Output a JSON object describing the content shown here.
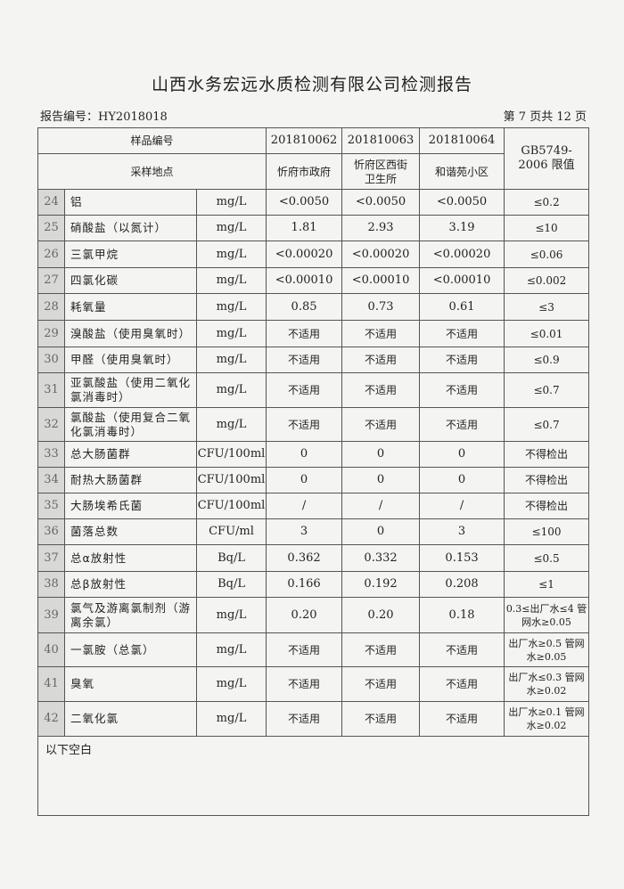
{
  "title": "山西水务宏远水质检测有限公司检测报告",
  "report_no": "报告编号：HY2018018",
  "page": "第 7 页共 12 页",
  "header": {
    "sample_no_label": "样品编号",
    "location_label": "采样地点",
    "samples": [
      "201810062",
      "201810063",
      "201810064"
    ],
    "locations": [
      "忻府市政府",
      "忻府区西街卫生所",
      "和谐苑小区"
    ],
    "limit_label": "GB5749-2006 限值"
  },
  "rows": [
    {
      "n": "24",
      "name": "铝",
      "unit": "mg/L",
      "v": [
        "<0.0050",
        "<0.0050",
        "<0.0050"
      ],
      "lim": "≤0.2"
    },
    {
      "n": "25",
      "name": "硝酸盐（以氮计）",
      "unit": "mg/L",
      "v": [
        "1.81",
        "2.93",
        "3.19"
      ],
      "lim": "≤10"
    },
    {
      "n": "26",
      "name": "三氯甲烷",
      "unit": "mg/L",
      "v": [
        "<0.00020",
        "<0.00020",
        "<0.00020"
      ],
      "lim": "≤0.06"
    },
    {
      "n": "27",
      "name": "四氯化碳",
      "unit": "mg/L",
      "v": [
        "<0.00010",
        "<0.00010",
        "<0.00010"
      ],
      "lim": "≤0.002"
    },
    {
      "n": "28",
      "name": "耗氧量",
      "unit": "mg/L",
      "v": [
        "0.85",
        "0.73",
        "0.61"
      ],
      "lim": "≤3"
    },
    {
      "n": "29",
      "name": "溴酸盐（使用臭氧时）",
      "unit": "mg/L",
      "v": [
        "不适用",
        "不适用",
        "不适用"
      ],
      "lim": "≤0.01"
    },
    {
      "n": "30",
      "name": "甲醛（使用臭氧时）",
      "unit": "mg/L",
      "v": [
        "不适用",
        "不适用",
        "不适用"
      ],
      "lim": "≤0.9"
    },
    {
      "n": "31",
      "name": "亚氯酸盐（使用二氧化氯消毒时）",
      "unit": "mg/L",
      "v": [
        "不适用",
        "不适用",
        "不适用"
      ],
      "lim": "≤0.7"
    },
    {
      "n": "32",
      "name": "氯酸盐（使用复合二氧化氯消毒时）",
      "unit": "mg/L",
      "v": [
        "不适用",
        "不适用",
        "不适用"
      ],
      "lim": "≤0.7"
    },
    {
      "n": "33",
      "name": "总大肠菌群",
      "unit": "CFU/100ml",
      "v": [
        "0",
        "0",
        "0"
      ],
      "lim": "不得检出"
    },
    {
      "n": "34",
      "name": "耐热大肠菌群",
      "unit": "CFU/100ml",
      "v": [
        "0",
        "0",
        "0"
      ],
      "lim": "不得检出"
    },
    {
      "n": "35",
      "name": "大肠埃希氏菌",
      "unit": "CFU/100ml",
      "v": [
        "/",
        "/",
        "/"
      ],
      "lim": "不得检出"
    },
    {
      "n": "36",
      "name": "菌落总数",
      "unit": "CFU/ml",
      "v": [
        "3",
        "0",
        "3"
      ],
      "lim": "≤100"
    },
    {
      "n": "37",
      "name": "总α放射性",
      "unit": "Bq/L",
      "v": [
        "0.362",
        "0.332",
        "0.153"
      ],
      "lim": "≤0.5"
    },
    {
      "n": "38",
      "name": "总β放射性",
      "unit": "Bq/L",
      "v": [
        "0.166",
        "0.192",
        "0.208"
      ],
      "lim": "≤1"
    },
    {
      "n": "39",
      "name": "氯气及游离氯制剂（游离余氯）",
      "unit": "mg/L",
      "v": [
        "0.20",
        "0.20",
        "0.18"
      ],
      "lim": "0.3≤出厂水≤4 管网水≥0.05"
    },
    {
      "n": "40",
      "name": "一氯胺（总氯）",
      "unit": "mg/L",
      "v": [
        "不适用",
        "不适用",
        "不适用"
      ],
      "lim": "出厂水≥0.5 管网水≥0.05"
    },
    {
      "n": "41",
      "name": "臭氧",
      "unit": "mg/L",
      "v": [
        "不适用",
        "不适用",
        "不适用"
      ],
      "lim": "出厂水≤0.3 管网水≥0.02"
    },
    {
      "n": "42",
      "name": "二氧化氯",
      "unit": "mg/L",
      "v": [
        "不适用",
        "不适用",
        "不适用"
      ],
      "lim": "出厂水≥0.1 管网水≥0.02"
    }
  ],
  "footer_note": "以下空白"
}
